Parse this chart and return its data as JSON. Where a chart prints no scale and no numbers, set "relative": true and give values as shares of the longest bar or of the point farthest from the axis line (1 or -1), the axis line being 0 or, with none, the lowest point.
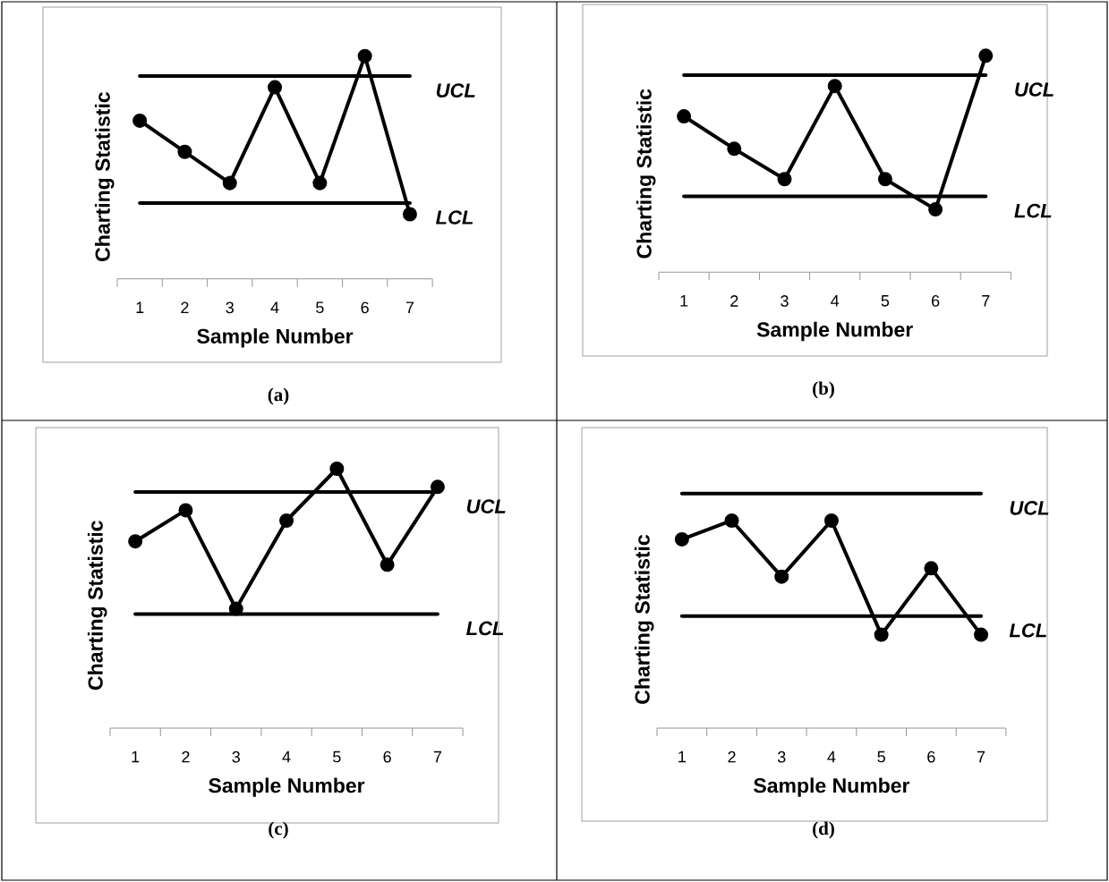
{
  "chart_data": [
    {
      "type": "line",
      "relative": true,
      "categories": [
        "1",
        "2",
        "3",
        "4",
        "5",
        "6",
        "7"
      ],
      "xlabel": "Sample Number",
      "ylabel": "Charting Statistic",
      "marker": "circle",
      "line_style": "solid",
      "series": [
        {
          "color": "#000000",
          "values": [
            0.71,
            0.57,
            0.43,
            0.86,
            0.43,
            1.0,
            0.29
          ]
        }
      ],
      "ref_lines": [
        {
          "axis": "y",
          "value": 0.91,
          "label": "UCL",
          "color": "#000000"
        },
        {
          "axis": "y",
          "value": 0.34,
          "label": "LCL",
          "color": "#000000"
        }
      ],
      "annotations": [
        "(a)"
      ]
    },
    {
      "type": "line",
      "relative": true,
      "categories": [
        "1",
        "2",
        "3",
        "4",
        "5",
        "6",
        "7"
      ],
      "xlabel": "Sample Number",
      "ylabel": "Charting Statistic",
      "marker": "circle",
      "line_style": "solid",
      "series": [
        {
          "color": "#000000",
          "values": [
            0.72,
            0.57,
            0.43,
            0.86,
            0.43,
            0.29,
            1.0
          ]
        }
      ],
      "ref_lines": [
        {
          "axis": "y",
          "value": 0.91,
          "label": "UCL",
          "color": "#000000"
        },
        {
          "axis": "y",
          "value": 0.35,
          "label": "LCL",
          "color": "#000000"
        }
      ],
      "annotations": [
        "(b)"
      ]
    },
    {
      "type": "line",
      "relative": true,
      "categories": [
        "1",
        "2",
        "3",
        "4",
        "5",
        "6",
        "7"
      ],
      "xlabel": "Sample Number",
      "ylabel": "Charting Statistic",
      "marker": "circle",
      "line_style": "solid",
      "series": [
        {
          "color": "#000000",
          "values": [
            0.72,
            0.84,
            0.46,
            0.8,
            1.0,
            0.63,
            0.93
          ]
        }
      ],
      "ref_lines": [
        {
          "axis": "y",
          "value": 0.91,
          "label": "UCL",
          "color": "#000000"
        },
        {
          "axis": "y",
          "value": 0.44,
          "label": "LCL",
          "color": "#000000"
        }
      ],
      "annotations": [
        "(c)"
      ]
    },
    {
      "type": "line",
      "relative": true,
      "categories": [
        "1",
        "2",
        "3",
        "4",
        "5",
        "6",
        "7"
      ],
      "xlabel": "Sample Number",
      "ylabel": "Charting Statistic",
      "marker": "circle",
      "line_style": "solid",
      "series": [
        {
          "color": "#000000",
          "values": [
            0.91,
            1.0,
            0.73,
            1.0,
            0.45,
            0.77,
            0.45
          ]
        }
      ],
      "ref_lines": [
        {
          "axis": "y",
          "value": 1.13,
          "label": "UCL",
          "color": "#000000"
        },
        {
          "axis": "y",
          "value": 0.54,
          "label": "LCL",
          "color": "#000000"
        }
      ],
      "annotations": [
        "(d)"
      ]
    }
  ]
}
